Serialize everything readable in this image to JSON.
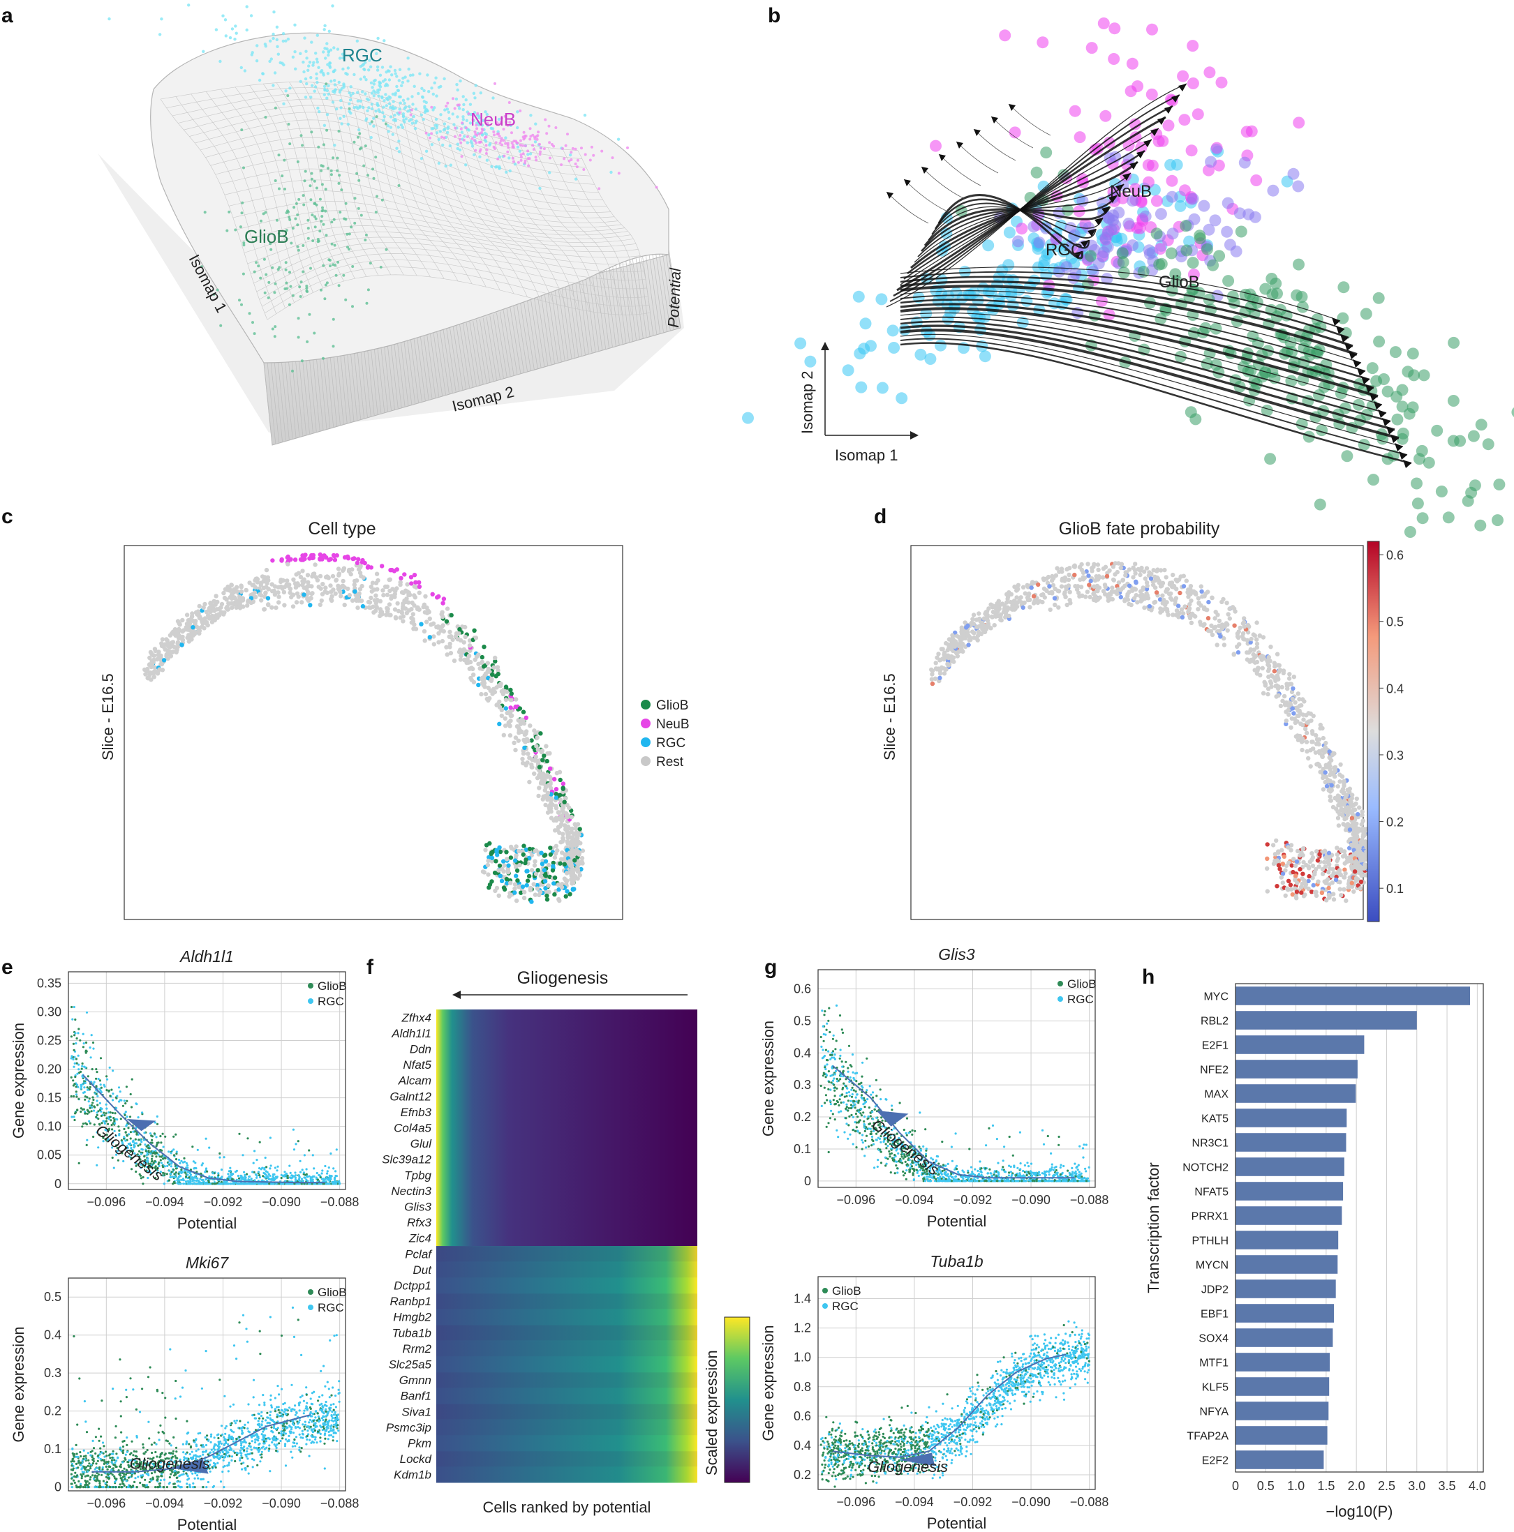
{
  "panels": {
    "a": {
      "label": "a",
      "annotations": [
        "RGC",
        "NeuB",
        "GlioB"
      ],
      "xlabel": "Isomap 1",
      "ylabel": "Isomap 2",
      "zlabel": "Potential"
    },
    "b": {
      "label": "b",
      "annotations": [
        "NeuB",
        "RGC",
        "GlioB"
      ],
      "xlabel": "Isomap 1",
      "ylabel": "Isomap 2"
    },
    "c": {
      "label": "c",
      "title": "Cell type",
      "ylabel": "Slice - E16.5",
      "legend": [
        "GlioB",
        "NeuB",
        "RGC",
        "Rest"
      ]
    },
    "d": {
      "label": "d",
      "title": "GlioB fate probability",
      "ylabel": "Slice - E16.5"
    },
    "e": {
      "label": "e"
    },
    "f": {
      "label": "f",
      "title": "Gliogenesis",
      "xlabel": "Cells ranked by potential",
      "colorbar_label": "Scaled expression"
    },
    "g": {
      "label": "g"
    },
    "h": {
      "label": "h"
    }
  },
  "colors": {
    "GlioB": "#2e8b57",
    "NeuB": "#e645e6",
    "RGC": "#3ec6f0",
    "Rest": "#cfcfcf",
    "bar": "#5b78ab",
    "trend": "#4c6fb1"
  },
  "chart_data": [
    {
      "id": "c",
      "type": "scatter",
      "title": "Cell type",
      "ylabel": "Slice - E16.5",
      "legend": [
        "GlioB",
        "NeuB",
        "RGC",
        "Rest"
      ]
    },
    {
      "id": "d",
      "type": "scatter",
      "title": "GlioB fate probability",
      "ylabel": "Slice - E16.5",
      "colorbar": {
        "ticks": [
          0.1,
          0.2,
          0.3,
          0.4,
          0.5,
          0.6
        ],
        "ticklabels": [
          "0.1",
          "0.2",
          "0.3",
          "0.4",
          "0.5",
          "0.6"
        ],
        "range": [
          0.05,
          0.62
        ]
      }
    },
    {
      "id": "e1",
      "type": "scatter",
      "title": "Aldh1l1",
      "xlabel": "Potential",
      "ylabel": "Gene expression",
      "legend": [
        "GlioB",
        "RGC"
      ],
      "legend_loc": "top-right",
      "xlim": [
        -0.0973,
        -0.0878
      ],
      "ylim": [
        -0.01,
        0.37
      ],
      "xticks": [
        -0.096,
        -0.094,
        -0.092,
        -0.09,
        -0.088
      ],
      "xticklabels": [
        "−0.096",
        "−0.094",
        "−0.092",
        "−0.090",
        "−0.088"
      ],
      "yticks": [
        0,
        0.05,
        0.1,
        0.15,
        0.2,
        0.25,
        0.3,
        0.35
      ],
      "yticklabels": [
        "0",
        "0.05",
        "0.10",
        "0.15",
        "0.20",
        "0.25",
        "0.30",
        "0.35"
      ],
      "trend": {
        "x": [
          -0.0968,
          -0.0955,
          -0.0945,
          -0.0935,
          -0.0925,
          -0.0915,
          -0.0895,
          -0.0885
        ],
        "y": [
          0.19,
          0.12,
          0.07,
          0.03,
          0.01,
          0.004,
          0.002,
          0.002
        ]
      },
      "annotation": "Gliogenesis"
    },
    {
      "id": "e2",
      "type": "scatter",
      "title": "Mki67",
      "xlabel": "Potential",
      "ylabel": "Gene expression",
      "legend": [
        "GlioB",
        "RGC"
      ],
      "legend_loc": "top-right",
      "xlim": [
        -0.0973,
        -0.0878
      ],
      "ylim": [
        -0.01,
        0.55
      ],
      "xticks": [
        -0.096,
        -0.094,
        -0.092,
        -0.09,
        -0.088
      ],
      "xticklabels": [
        "−0.096",
        "−0.094",
        "−0.092",
        "−0.090",
        "−0.088"
      ],
      "yticks": [
        0,
        0.1,
        0.2,
        0.3,
        0.4,
        0.5
      ],
      "yticklabels": [
        "0",
        "0.1",
        "0.2",
        "0.3",
        "0.4",
        "0.5"
      ],
      "trend": {
        "x": [
          -0.0965,
          -0.095,
          -0.0935,
          -0.0925,
          -0.0915,
          -0.0905,
          -0.089
        ],
        "y": [
          0.04,
          0.04,
          0.05,
          0.08,
          0.12,
          0.16,
          0.19
        ]
      },
      "annotation": "Gliogenesis"
    },
    {
      "id": "f",
      "type": "heatmap",
      "title": "Gliogenesis",
      "xlabel": "Cells ranked by potential",
      "colorbar_label": "Scaled expression",
      "genes": [
        "Zfhx4",
        "Aldh1l1",
        "Ddn",
        "Nfat5",
        "Alcam",
        "Galnt12",
        "Efnb3",
        "Col4a5",
        "Glul",
        "Slc39a12",
        "Tpbg",
        "Nectin3",
        "Glis3",
        "Rfx3",
        "Zic4",
        "Pclaf",
        "Dut",
        "Dctpp1",
        "Ranbp1",
        "Hmgb2",
        "Tuba1b",
        "Rrm2",
        "Slc25a5",
        "Gmnn",
        "Banf1",
        "Siva1",
        "Psmc3ip",
        "Pkm",
        "Lockd",
        "Kdm1b"
      ],
      "up_at_low_potential": 15,
      "down_at_low_potential": 15
    },
    {
      "id": "g1",
      "type": "scatter",
      "title": "Glis3",
      "xlabel": "Potential",
      "ylabel": "Gene expression",
      "legend": [
        "GlioB",
        "RGC"
      ],
      "legend_loc": "top-right",
      "xlim": [
        -0.0973,
        -0.0878
      ],
      "ylim": [
        -0.02,
        0.66
      ],
      "xticks": [
        -0.096,
        -0.094,
        -0.092,
        -0.09,
        -0.088
      ],
      "xticklabels": [
        "−0.096",
        "−0.094",
        "−0.092",
        "−0.090",
        "−0.088"
      ],
      "yticks": [
        0,
        0.1,
        0.2,
        0.3,
        0.4,
        0.5,
        0.6
      ],
      "yticklabels": [
        "0",
        "0.1",
        "0.2",
        "0.3",
        "0.4",
        "0.5",
        "0.6"
      ],
      "trend": {
        "x": [
          -0.0968,
          -0.0955,
          -0.0945,
          -0.0935,
          -0.0925,
          -0.0915,
          -0.0895,
          -0.0885
        ],
        "y": [
          0.36,
          0.26,
          0.15,
          0.06,
          0.02,
          0.01,
          0.01,
          0.01
        ]
      },
      "annotation": "Gliogenesis"
    },
    {
      "id": "g2",
      "type": "scatter",
      "title": "Tuba1b",
      "xlabel": "Potential",
      "ylabel": "Gene expression",
      "legend": [
        "GlioB",
        "RGC"
      ],
      "legend_loc": "top-left",
      "xlim": [
        -0.0973,
        -0.0878
      ],
      "ylim": [
        0.1,
        1.55
      ],
      "xticks": [
        -0.096,
        -0.094,
        -0.092,
        -0.09,
        -0.088
      ],
      "xticklabels": [
        "−0.096",
        "−0.094",
        "−0.092",
        "−0.090",
        "−0.088"
      ],
      "yticks": [
        0.2,
        0.4,
        0.6,
        0.8,
        1.0,
        1.2,
        1.4
      ],
      "yticklabels": [
        "0.2",
        "0.4",
        "0.6",
        "0.8",
        "1.0",
        "1.2",
        "1.4"
      ],
      "trend": {
        "x": [
          -0.0968,
          -0.0955,
          -0.0945,
          -0.0935,
          -0.0925,
          -0.0915,
          -0.0905,
          -0.0895,
          -0.0888
        ],
        "y": [
          0.36,
          0.33,
          0.32,
          0.36,
          0.52,
          0.74,
          0.9,
          0.99,
          1.02
        ]
      },
      "annotation": "Gliogenesis"
    },
    {
      "id": "h",
      "type": "bar",
      "orientation": "horizontal",
      "xlabel": "−log10(P)",
      "ylabel": "Transcription factor",
      "xlim": [
        0,
        4.1
      ],
      "xticks": [
        0,
        0.5,
        1.0,
        1.5,
        2.0,
        2.5,
        3.0,
        3.5,
        4.0
      ],
      "xticklabels": [
        "0",
        "0.5",
        "1.0",
        "1.5",
        "2.0",
        "2.5",
        "3.0",
        "3.5",
        "4.0"
      ],
      "categories": [
        "MYC",
        "RBL2",
        "E2F1",
        "NFE2",
        "MAX",
        "KAT5",
        "NR3C1",
        "NOTCH2",
        "NFAT5",
        "PRRX1",
        "PTHLH",
        "MYCN",
        "JDP2",
        "EBF1",
        "SOX4",
        "MTF1",
        "KLF5",
        "NFYA",
        "TFAP2A",
        "E2F2"
      ],
      "values": [
        3.88,
        3.0,
        2.13,
        2.02,
        1.99,
        1.84,
        1.83,
        1.8,
        1.78,
        1.76,
        1.7,
        1.69,
        1.66,
        1.63,
        1.61,
        1.56,
        1.55,
        1.54,
        1.52,
        1.46
      ]
    }
  ]
}
